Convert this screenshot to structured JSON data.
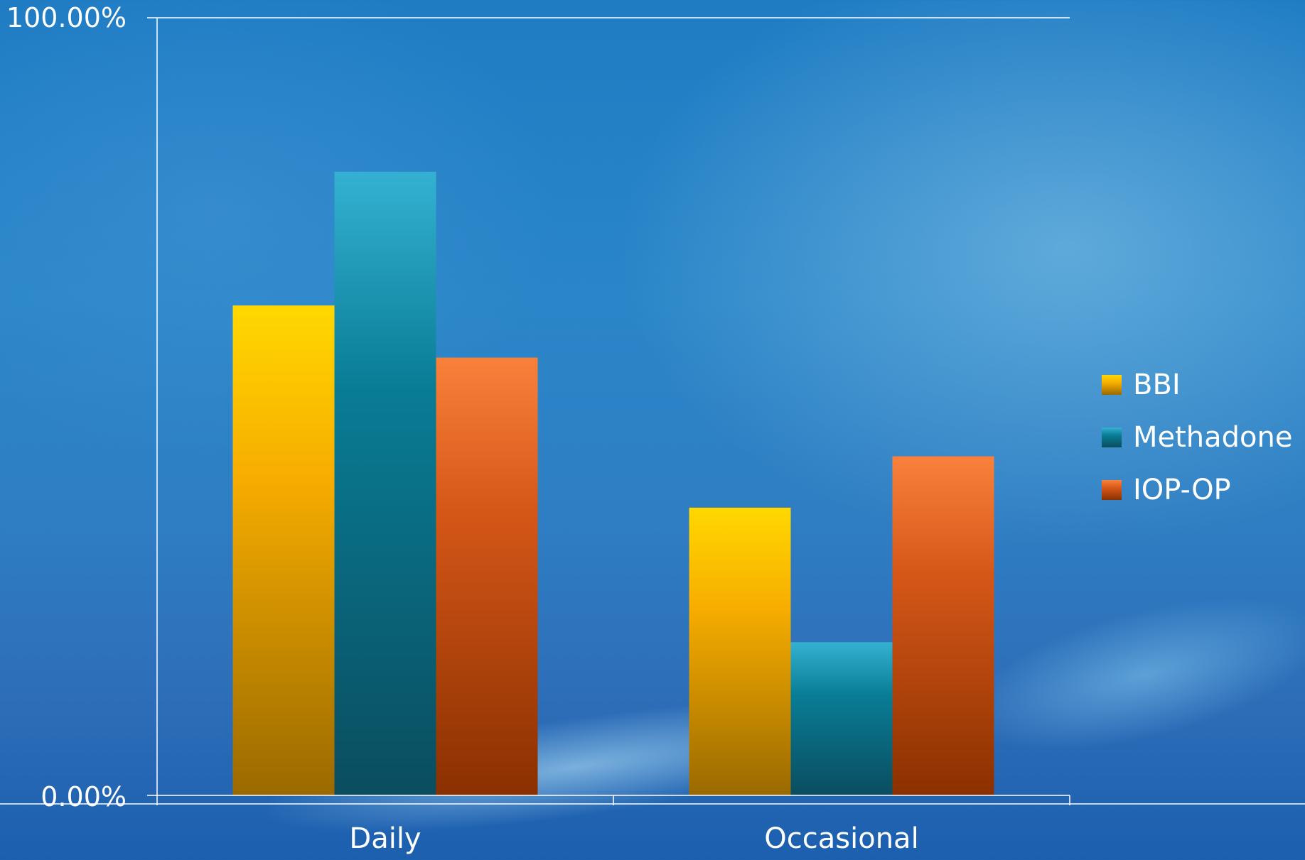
{
  "chart_data": {
    "type": "bar",
    "categories": [
      "Daily",
      "Occasional"
    ],
    "series": [
      {
        "name": "BBI",
        "values": [
          63.0,
          37.0
        ]
      },
      {
        "name": "Methadone",
        "values": [
          80.2,
          19.7
        ]
      },
      {
        "name": "IOP-OP",
        "values": [
          56.3,
          43.6
        ]
      }
    ],
    "y_tick_labels": [
      "0.00%",
      "100.00%"
    ],
    "ylim": [
      0,
      100
    ],
    "grid": false,
    "legend_position": "right"
  },
  "colors": {
    "BBI": {
      "top": "#ffd800",
      "mid": "#f7ad00",
      "bottom": "#9a6a00"
    },
    "Methadone": {
      "top": "#34b1d2",
      "mid": "#097c95",
      "bottom": "#0a4d5f"
    },
    "IOP-OP": {
      "top": "#f9813c",
      "mid": "#d55718",
      "bottom": "#8a3000"
    },
    "axis": "#ffffff",
    "text": "#ffffff"
  }
}
